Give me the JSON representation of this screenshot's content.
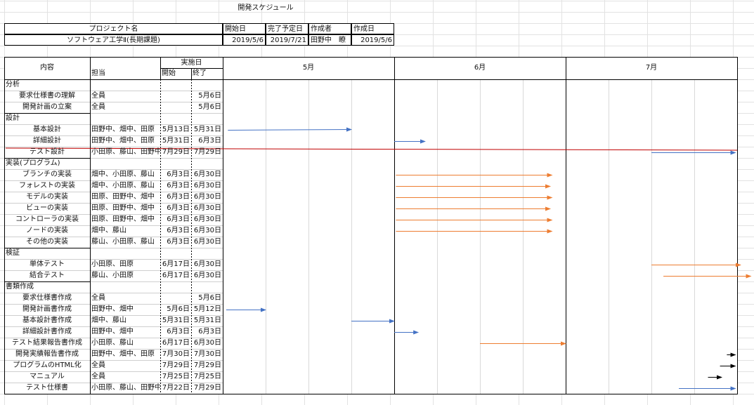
{
  "sheet_title": "開発スケジュール",
  "project_header": {
    "name_label": "プロジェクト名",
    "start_label": "開始日",
    "due_label": "完了予定日",
    "author_label": "作成者",
    "created_label": "作成日",
    "name": "ソフトウェア工学Ⅱ(長期課題)",
    "start": "2019/5/6",
    "due": "2019/7/21",
    "author": "田野中　瞭",
    "created": "2019/5/6"
  },
  "schedule_header": {
    "content": "内容",
    "assignee": "担当",
    "period": "実施日",
    "start": "開始",
    "end": "終了",
    "months": [
      "5月",
      "6月",
      "7月"
    ]
  },
  "rows": [
    {
      "type": "category",
      "content": "分析"
    },
    {
      "type": "task",
      "content": "要求仕様書の理解",
      "assignee": "全員",
      "start": "",
      "end": "5月6日"
    },
    {
      "type": "task",
      "content": "開発計画の立案",
      "assignee": "全員",
      "start": "",
      "end": "5月6日"
    },
    {
      "type": "category",
      "content": "設計"
    },
    {
      "type": "task",
      "content": "基本設計",
      "assignee": "田野中、畑中、田原",
      "start": "5月13日",
      "end": "5月31日"
    },
    {
      "type": "task",
      "content": "詳細設計",
      "assignee": "田野中、畑中、田原",
      "start": "5月31日",
      "end": "6月3日"
    },
    {
      "type": "task",
      "content": "テスト設計",
      "assignee": "小田原、藤山、田野中",
      "start": "7月29日",
      "end": "7月29日"
    },
    {
      "type": "category",
      "content": "実装(プログラム)"
    },
    {
      "type": "task",
      "content": "ブランチの実装",
      "assignee": "畑中、小田原、藤山",
      "start": "6月3日",
      "end": "6月30日"
    },
    {
      "type": "task",
      "content": "フォレストの実装",
      "assignee": "畑中、小田原、藤山",
      "start": "6月3日",
      "end": "6月30日"
    },
    {
      "type": "task",
      "content": "モデルの実装",
      "assignee": "田原、田野中、畑中",
      "start": "6月3日",
      "end": "6月30日"
    },
    {
      "type": "task",
      "content": "ビューの実装",
      "assignee": "田原、田野中、畑中",
      "start": "6月3日",
      "end": "6月30日"
    },
    {
      "type": "task",
      "content": "コントローラの実装",
      "assignee": "田原、田野中、畑中",
      "start": "6月3日",
      "end": "6月30日"
    },
    {
      "type": "task",
      "content": "ノードの実装",
      "assignee": "畑中、藤山",
      "start": "6月3日",
      "end": "6月30日"
    },
    {
      "type": "task",
      "content": "その他の実装",
      "assignee": "藤山、小田原、藤山",
      "start": "6月3日",
      "end": "6月30日"
    },
    {
      "type": "category",
      "content": "検証"
    },
    {
      "type": "task",
      "content": "単体テスト",
      "assignee": "小田原、田原",
      "start": "6月17日",
      "end": "6月30日"
    },
    {
      "type": "task",
      "content": "結合テスト",
      "assignee": "藤山、小田原",
      "start": "6月17日",
      "end": "6月30日"
    },
    {
      "type": "category",
      "content": "書類作成"
    },
    {
      "type": "task",
      "content": "要求仕様書作成",
      "assignee": "全員",
      "start": "",
      "end": "5月6日"
    },
    {
      "type": "task",
      "content": "開発計画書作成",
      "assignee": "田野中、畑中",
      "start": "5月6日",
      "end": "5月12日"
    },
    {
      "type": "task",
      "content": "基本設計書作成",
      "assignee": "畑中、藤山",
      "start": "5月31日",
      "end": "5月31日"
    },
    {
      "type": "task",
      "content": "詳細設計書作成",
      "assignee": "田野中、畑中",
      "start": "6月3日",
      "end": "6月3日"
    },
    {
      "type": "task",
      "content": "テスト結果報告書作成",
      "assignee": "小田原、藤山",
      "start": "6月17日",
      "end": "6月30日"
    },
    {
      "type": "task",
      "content": "開発実績報告書作成",
      "assignee": "田野中、畑中、田原",
      "start": "7月30日",
      "end": "7月30日"
    },
    {
      "type": "task",
      "content": "プログラムのHTML化",
      "assignee": "全員",
      "start": "7月29日",
      "end": "7月29日"
    },
    {
      "type": "task",
      "content": "マニュアル",
      "assignee": "全員",
      "start": "7月25日",
      "end": "7月25日"
    },
    {
      "type": "task",
      "content": "テスト仕様書",
      "assignee": "小田原、藤山、田野中",
      "start": "7月22日",
      "end": "7月29日"
    }
  ],
  "arrow_colors": {
    "blue": "#4472c4",
    "orange": "#ed7d31",
    "black": "#000000",
    "red": "#c00000"
  },
  "arrows": [
    {
      "row": 4,
      "x1": 0.03,
      "x2": 0.75,
      "color": "blue"
    },
    {
      "row": 5,
      "x1": 1.0,
      "x2": 1.18,
      "color": "blue"
    },
    {
      "row": 6,
      "x1": 2.5,
      "x2": 2.99,
      "color": "blue"
    },
    {
      "row": 8,
      "x1": 1.01,
      "x2": 1.92,
      "color": "orange"
    },
    {
      "row": 9,
      "x1": 1.01,
      "x2": 1.91,
      "color": "orange"
    },
    {
      "row": 10,
      "x1": 1.01,
      "x2": 1.92,
      "color": "orange"
    },
    {
      "row": 11,
      "x1": 1.01,
      "x2": 1.91,
      "color": "orange"
    },
    {
      "row": 12,
      "x1": 1.01,
      "x2": 1.92,
      "color": "orange"
    },
    {
      "row": 13,
      "x1": 1.01,
      "x2": 1.92,
      "color": "orange"
    },
    {
      "row": 16,
      "x1": 2.5,
      "x2": 3.02,
      "color": "orange"
    },
    {
      "row": 17,
      "x1": 2.57,
      "x2": 3.08,
      "color": "orange"
    },
    {
      "row": 20,
      "x1": 0.02,
      "x2": 0.25,
      "color": "blue"
    },
    {
      "row": 21,
      "x1": 0.75,
      "x2": 1.0,
      "color": "blue"
    },
    {
      "row": 22,
      "x1": 1.0,
      "x2": 1.14,
      "color": "blue"
    },
    {
      "row": 23,
      "x1": 1.5,
      "x2": 2.0,
      "color": "orange"
    },
    {
      "row": 24,
      "x1": 2.94,
      "x2": 2.99,
      "color": "black"
    },
    {
      "row": 25,
      "x1": 2.9,
      "x2": 2.99,
      "color": "black"
    },
    {
      "row": 26,
      "x1": 2.83,
      "x2": 2.91,
      "color": "black"
    },
    {
      "row": 27,
      "x1": 2.66,
      "x2": 2.99,
      "color": "blue"
    }
  ],
  "strike_line": {
    "row": 6,
    "color": "red"
  }
}
